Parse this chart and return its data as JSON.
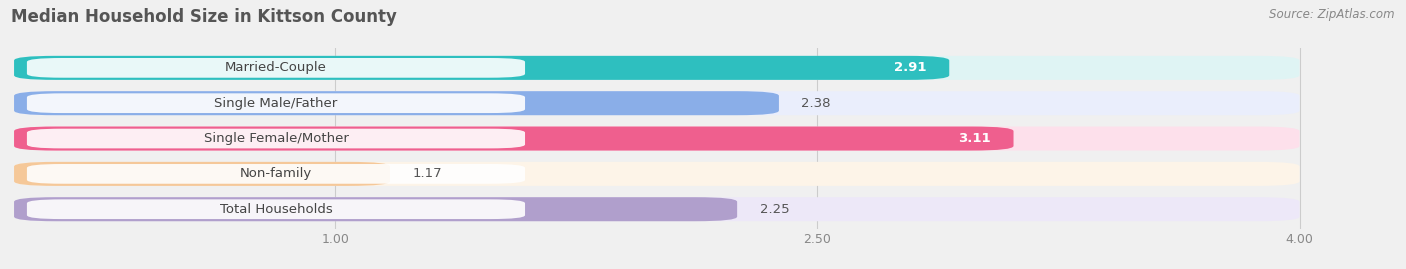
{
  "title": "Median Household Size in Kittson County",
  "source": "Source: ZipAtlas.com",
  "categories": [
    "Married-Couple",
    "Single Male/Father",
    "Single Female/Mother",
    "Non-family",
    "Total Households"
  ],
  "values": [
    2.91,
    2.38,
    3.11,
    1.17,
    2.25
  ],
  "bar_colors": [
    "#2ebfbf",
    "#8aaee8",
    "#ef5f8e",
    "#f5c899",
    "#b09fcc"
  ],
  "bar_bg_colors": [
    "#dff4f4",
    "#eaeefc",
    "#fde0eb",
    "#fdf4e8",
    "#ede8f8"
  ],
  "value_in_bar": [
    true,
    false,
    true,
    false,
    false
  ],
  "value_colors_in": [
    "white",
    "white",
    "white",
    "white",
    "white"
  ],
  "value_colors_out": [
    "#888888",
    "#888888",
    "#888888",
    "#888888",
    "#888888"
  ],
  "xlim": [
    0.0,
    4.2
  ],
  "xmin": 0.0,
  "xmax": 4.0,
  "xticks": [
    1.0,
    2.5,
    4.0
  ],
  "title_fontsize": 12,
  "label_fontsize": 9.5,
  "value_fontsize": 9.5,
  "tick_fontsize": 9,
  "source_fontsize": 8.5,
  "background_color": "#f0f0f0",
  "bar_bg_strip": "#e8e8e8"
}
